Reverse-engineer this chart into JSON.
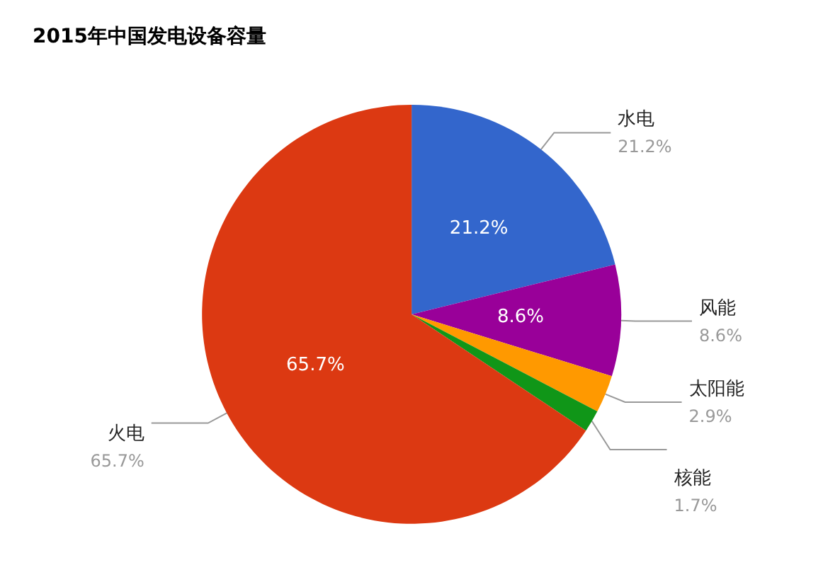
{
  "chart_data": {
    "type": "pie",
    "title": "2015年中国发电设备容量",
    "categories": [
      "水电",
      "风能",
      "太阳能",
      "核能",
      "火电"
    ],
    "values": [
      21.2,
      8.6,
      2.9,
      1.7,
      65.7
    ],
    "colors": [
      "#3366cc",
      "#990099",
      "#ff9900",
      "#109618",
      "#dc3912"
    ],
    "value_labels": [
      "21.2%",
      "8.6%",
      "2.9%",
      "1.7%",
      "65.7%"
    ],
    "legend": false
  }
}
